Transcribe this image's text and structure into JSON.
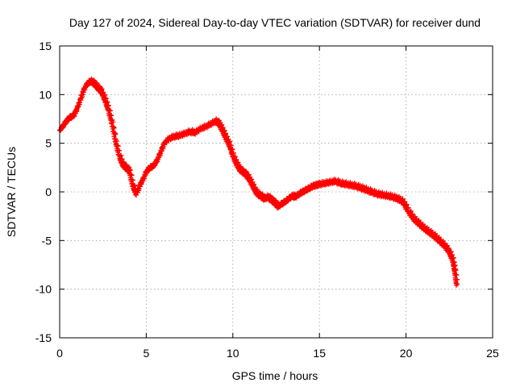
{
  "chart_data": {
    "type": "scatter",
    "title": "Day 127 of 2024, Sidereal Day-to-day VTEC variation (SDTVAR) for receiver dund",
    "xlabel": "GPS time / hours",
    "ylabel": "SDTVAR / TECUs",
    "xlim": [
      0,
      25
    ],
    "ylim": [
      -15,
      15
    ],
    "xticks": [
      0,
      5,
      10,
      15,
      20,
      25
    ],
    "yticks": [
      -15,
      -10,
      -5,
      0,
      5,
      10,
      15
    ],
    "grid": true,
    "marker": "+",
    "series": [
      {
        "name": "SDTVAR",
        "color": "#ff0000",
        "x": [
          0.0,
          0.2,
          0.4,
          0.6,
          0.8,
          1.0,
          1.2,
          1.4,
          1.6,
          1.8,
          2.0,
          2.2,
          2.4,
          2.6,
          2.8,
          3.0,
          3.2,
          3.4,
          3.6,
          3.8,
          4.0,
          4.2,
          4.4,
          4.6,
          4.8,
          5.0,
          5.2,
          5.4,
          5.6,
          5.8,
          6.0,
          6.3,
          6.6,
          6.9,
          7.2,
          7.5,
          7.8,
          8.1,
          8.4,
          8.7,
          9.0,
          9.2,
          9.4,
          9.6,
          9.8,
          10.0,
          10.2,
          10.4,
          10.6,
          10.8,
          11.0,
          11.2,
          11.4,
          11.6,
          11.8,
          12.0,
          12.2,
          12.4,
          12.6,
          12.8,
          13.0,
          13.2,
          13.4,
          13.6,
          13.8,
          14.0,
          14.2,
          14.4,
          14.6,
          14.8,
          15.0,
          15.3,
          15.6,
          15.9,
          16.2,
          16.5,
          16.8,
          17.1,
          17.4,
          17.7,
          18.0,
          18.3,
          18.6,
          18.9,
          19.2,
          19.5,
          19.8,
          20.1,
          20.4,
          20.7,
          21.0,
          21.3,
          21.6,
          21.9,
          22.2,
          22.5,
          22.7,
          22.8,
          22.9
        ],
        "y": [
          6.3,
          6.8,
          7.3,
          7.6,
          7.8,
          8.6,
          9.6,
          10.6,
          11.1,
          11.3,
          11.0,
          10.6,
          10.2,
          9.4,
          8.4,
          7.0,
          5.2,
          3.8,
          2.8,
          2.4,
          2.1,
          0.6,
          -0.3,
          0.6,
          1.3,
          2.1,
          2.4,
          2.6,
          3.2,
          4.0,
          4.9,
          5.4,
          5.6,
          5.7,
          5.9,
          6.1,
          6.0,
          6.4,
          6.6,
          6.9,
          7.2,
          6.9,
          6.2,
          5.4,
          4.7,
          3.6,
          2.8,
          2.2,
          1.9,
          1.6,
          1.0,
          0.3,
          -0.3,
          -0.5,
          -0.8,
          -0.6,
          -0.9,
          -1.2,
          -1.6,
          -1.3,
          -1.1,
          -0.8,
          -0.5,
          -0.6,
          -0.3,
          -0.1,
          0.1,
          0.3,
          0.5,
          0.6,
          0.7,
          0.8,
          0.9,
          1.0,
          0.8,
          0.7,
          0.6,
          0.5,
          0.3,
          0.1,
          -0.1,
          -0.3,
          -0.4,
          -0.5,
          -0.6,
          -0.8,
          -1.1,
          -2.0,
          -2.8,
          -3.3,
          -3.8,
          -4.2,
          -4.6,
          -5.1,
          -5.6,
          -6.3,
          -7.2,
          -8.2,
          -9.6
        ]
      }
    ]
  }
}
